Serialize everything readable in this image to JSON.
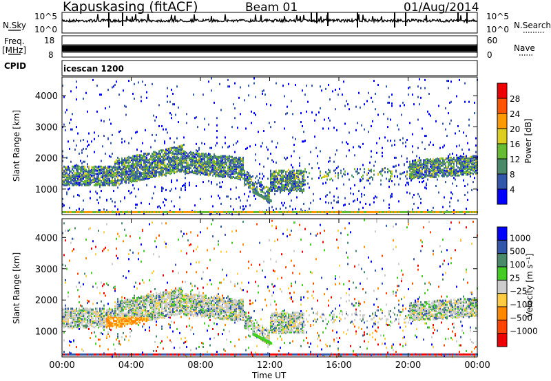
{
  "header": {
    "station": "Kapuskasing (fitACF)",
    "beam": "Beam 01",
    "date": "01/Aug/2014"
  },
  "sky_panel": {
    "left_label": "N.Sky",
    "left_ticks": [
      "10^5",
      "10^0"
    ],
    "right_label": "N.Search",
    "right_ticks": [
      "10^5",
      "10^0"
    ]
  },
  "freq_panel": {
    "left_label_1": "Freq.",
    "left_label_2": "[MHz]",
    "left_ticks": [
      "18",
      "8"
    ],
    "right_label": "Nave",
    "right_ticks": [
      "60",
      "0"
    ]
  },
  "cpid_panel": {
    "label": "CPID",
    "mode": "icescan 1200"
  },
  "chart_data": [
    {
      "type": "heatmap",
      "quantity": "Power",
      "ylabel": "Slant Range [km]",
      "xlabel": "Time UT",
      "ylim": [
        180,
        4600
      ],
      "yticks": [
        "1000",
        "2000",
        "3000",
        "4000"
      ],
      "xticks": [
        "00:00",
        "04:00",
        "08:00",
        "12:00",
        "16:00",
        "20:00",
        "00:00"
      ],
      "colorbar_label": "Power [dB]",
      "colorbar_ticks": [
        "4",
        "8",
        "12",
        "16",
        "20",
        "24",
        "28"
      ],
      "colors": [
        "#0000ff",
        "#3355aa",
        "#4a8a6a",
        "#66bb33",
        "#ddcc22",
        "#ff9900",
        "#ff5500",
        "#ee0000"
      ]
    },
    {
      "type": "heatmap",
      "quantity": "Velocity",
      "ylabel": "Slant Range [km]",
      "xlabel": "Time UT",
      "ylim": [
        180,
        4600
      ],
      "yticks": [
        "1000",
        "2000",
        "3000",
        "4000"
      ],
      "xticks": [
        "00:00",
        "04:00",
        "08:00",
        "12:00",
        "16:00",
        "20:00",
        "00:00"
      ],
      "colorbar_label": "Velocity [m s⁻¹]",
      "colorbar_ticks": [
        "1000",
        "500",
        "100",
        "25",
        "−25",
        "−100",
        "−500",
        "−1000"
      ],
      "colors": [
        "#0000ff",
        "#3355aa",
        "#4a8a6a",
        "#44cc22",
        "#cccccc",
        "#ffcc44",
        "#ff8800",
        "#ff4400",
        "#ee0000"
      ]
    }
  ]
}
